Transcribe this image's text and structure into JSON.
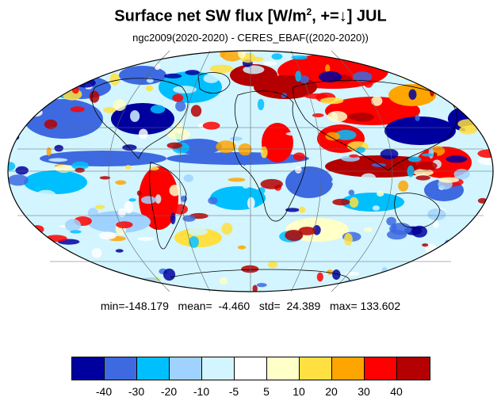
{
  "title": {
    "prefix": "Surface net SW flux [W/m",
    "sup": "2",
    "suffix": ", +=↓]  JUL"
  },
  "subtitle": "ngc2009(2020-2020) - CERES_EBAF((2020-2020))",
  "stats": {
    "text": "min=-148.179   mean=  -4.460   std=  24.389   max= 133.602"
  },
  "colorbar": {
    "colors": [
      "#00009e",
      "#3d6ae0",
      "#00bfff",
      "#a0d2ff",
      "#d2f5ff",
      "#ffffff",
      "#ffffc8",
      "#ffe040",
      "#ffa500",
      "#ff0000",
      "#b40000"
    ],
    "labels": [
      "-40",
      "-30",
      "-20",
      "-10",
      "-5",
      "5",
      "10",
      "20",
      "30",
      "40"
    ]
  }
}
